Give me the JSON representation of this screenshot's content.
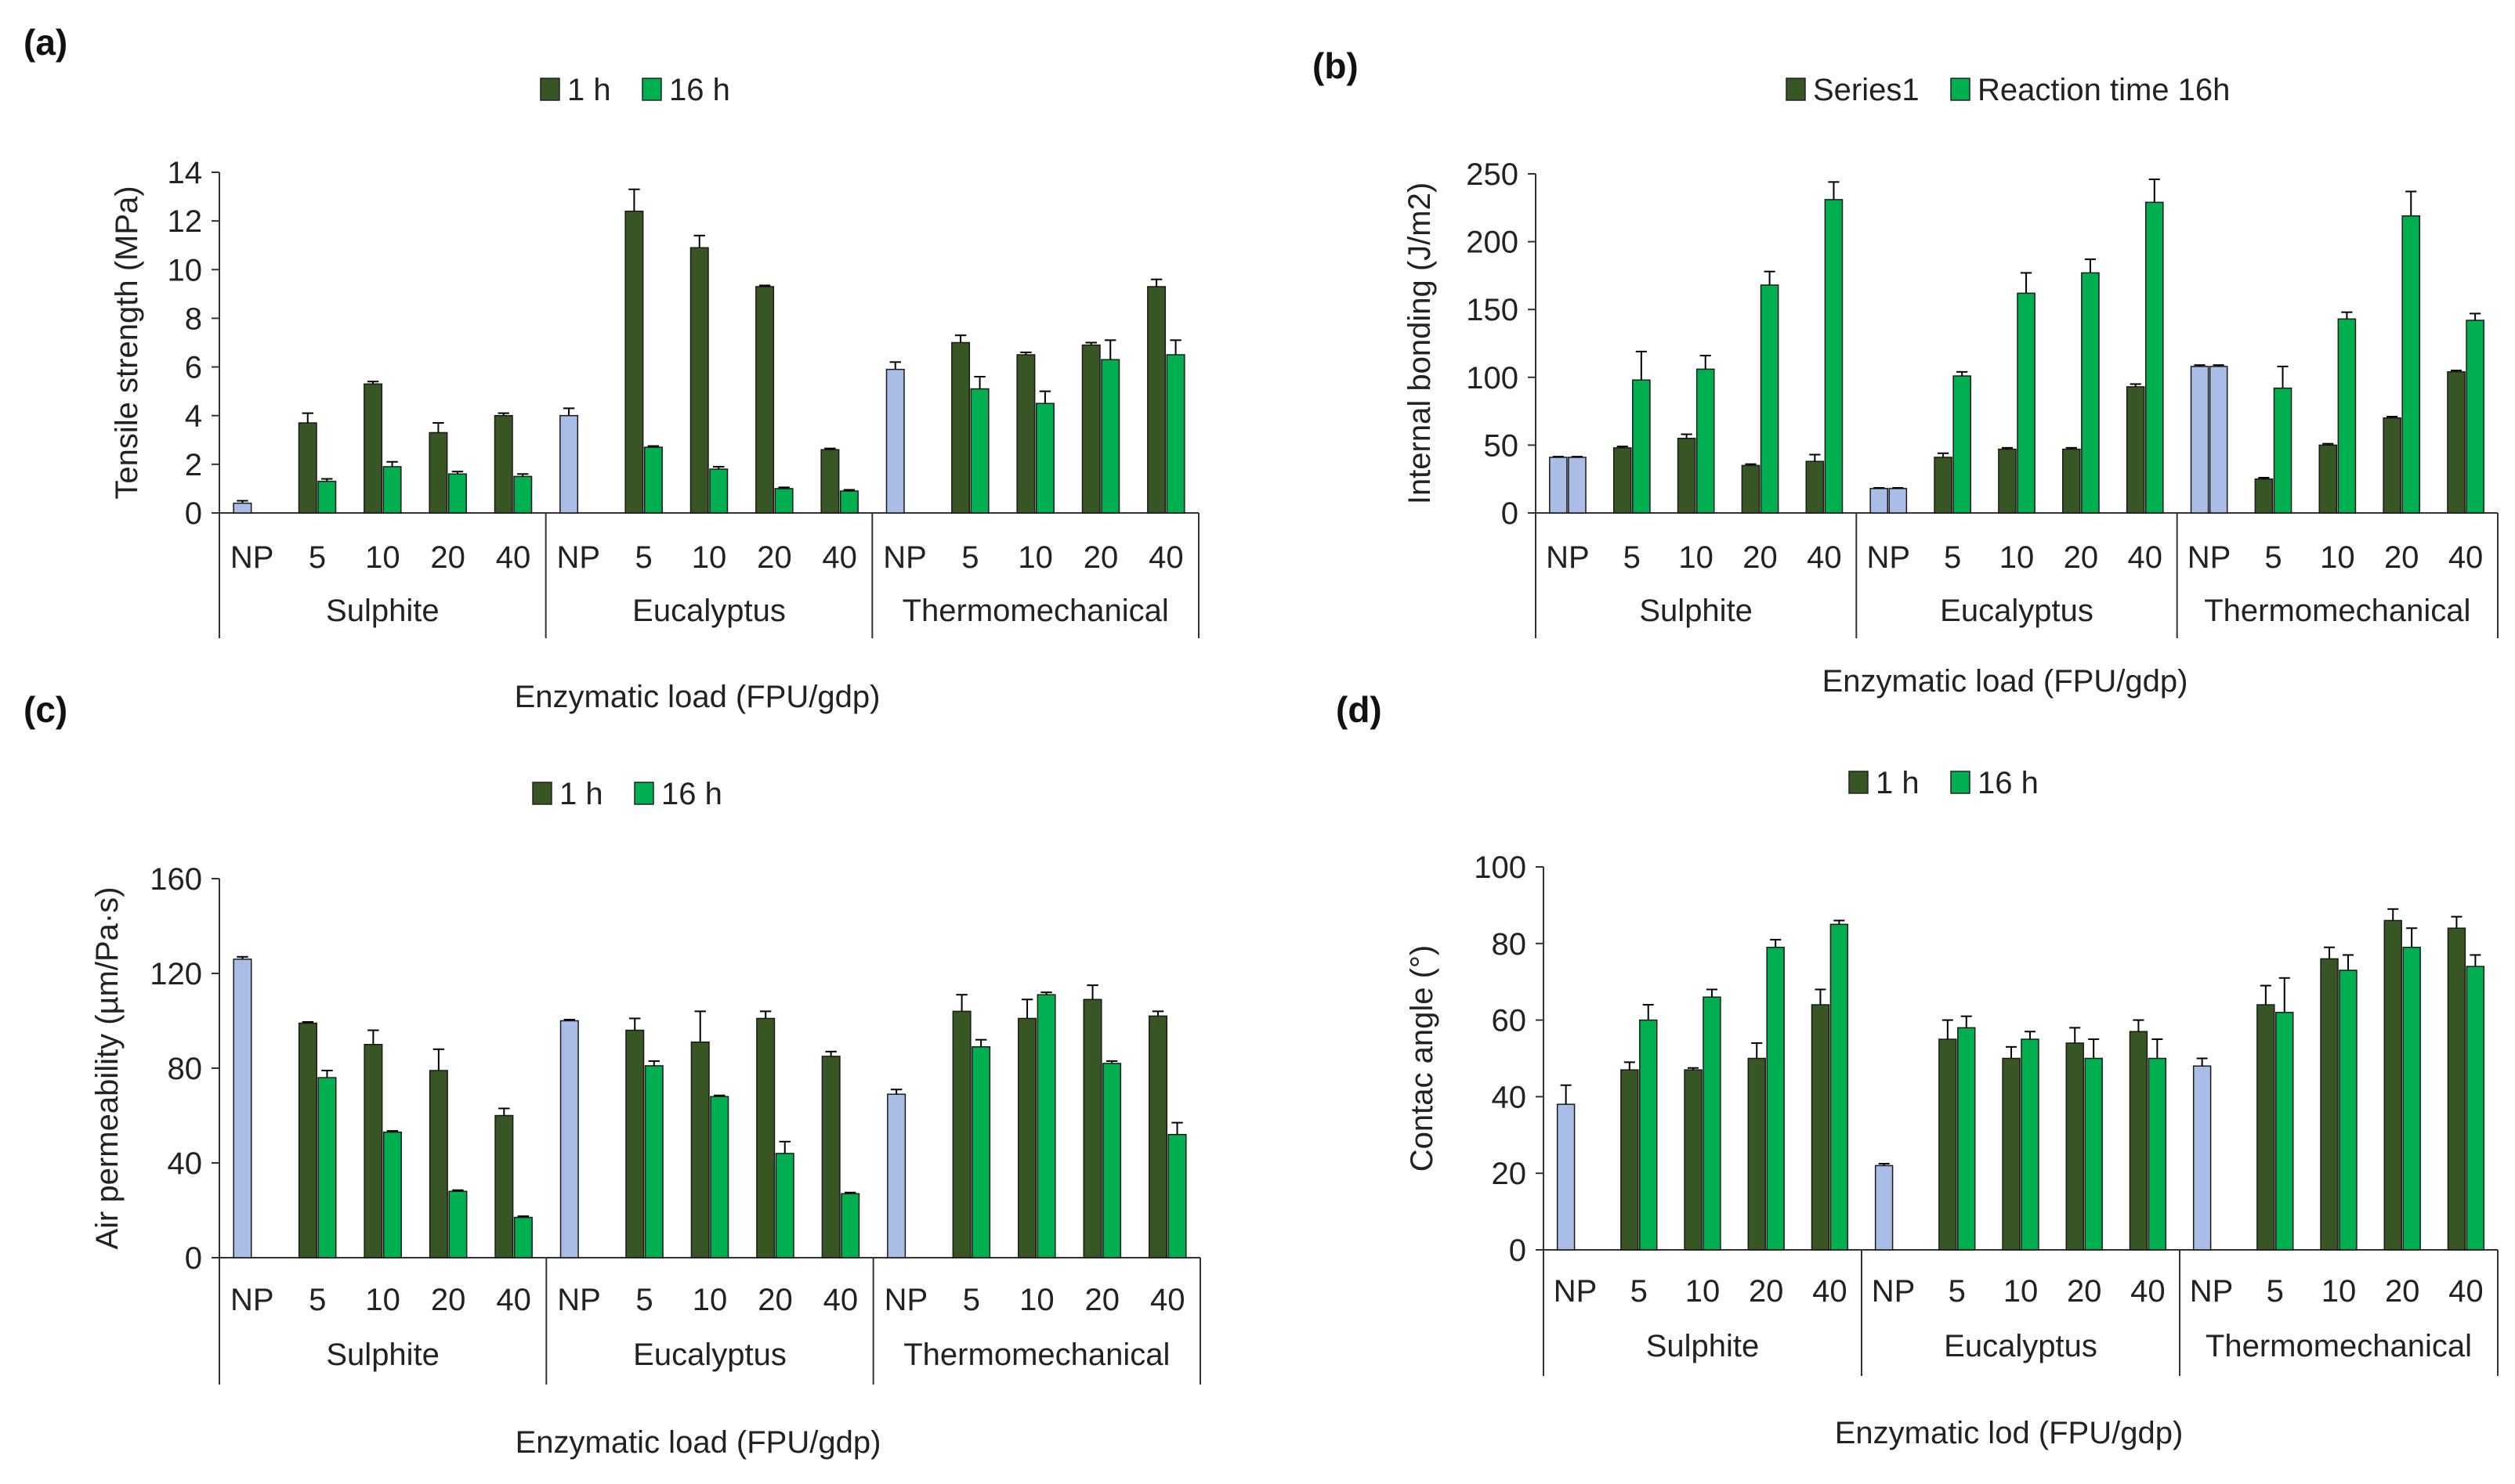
{
  "colors": {
    "series_1h": "#375623",
    "series_16h": "#00b050",
    "np": "#a9bde6",
    "axis": "#333333"
  },
  "chart_data": [
    {
      "panel": "(a)",
      "type": "bar",
      "legend": [
        "1 h",
        "16 h"
      ],
      "ylabel": "Tensile strength (MPa)",
      "xlabel": "Enzymatic load (FPU/gdp)",
      "ylim": [
        0,
        14
      ],
      "yticks": [
        0,
        2,
        4,
        6,
        8,
        10,
        12,
        14
      ],
      "groups": [
        {
          "name": "Sulphite",
          "np": {
            "value": 0.4,
            "err": 0.1
          },
          "loads": [
            "5",
            "10",
            "20",
            "40"
          ],
          "h1": [
            3.7,
            5.3,
            3.3,
            4.0
          ],
          "h1_err": [
            0.4,
            0.1,
            0.4,
            0.1
          ],
          "h16": [
            1.3,
            1.9,
            1.6,
            1.5
          ],
          "h16_err": [
            0.1,
            0.2,
            0.1,
            0.1
          ]
        },
        {
          "name": "Eucalyptus",
          "np": {
            "value": 4.0,
            "err": 0.3
          },
          "loads": [
            "5",
            "10",
            "20",
            "40"
          ],
          "h1": [
            12.4,
            10.9,
            9.3,
            2.6
          ],
          "h1_err": [
            0.9,
            0.5,
            0.05,
            0.05
          ],
          "h16": [
            2.7,
            1.8,
            1.0,
            0.9
          ],
          "h16_err": [
            0.05,
            0.1,
            0.05,
            0.05
          ]
        },
        {
          "name": "Thermomechanical",
          "np": {
            "value": 5.9,
            "err": 0.3
          },
          "loads": [
            "5",
            "10",
            "20",
            "40"
          ],
          "h1": [
            7.0,
            6.5,
            6.9,
            9.3
          ],
          "h1_err": [
            0.3,
            0.1,
            0.1,
            0.3
          ],
          "h16": [
            5.1,
            4.5,
            6.3,
            6.5
          ],
          "h16_err": [
            0.5,
            0.5,
            0.8,
            0.6
          ]
        }
      ]
    },
    {
      "panel": "(b)",
      "type": "bar",
      "legend": [
        "Series1",
        "Reaction time 16h"
      ],
      "ylabel": "Internal bonding (J/m2)",
      "xlabel": "Enzymatic load (FPU/gdp)",
      "ylim": [
        0,
        250
      ],
      "yticks": [
        0,
        50,
        100,
        150,
        200,
        250
      ],
      "np_two_bars": true,
      "groups": [
        {
          "name": "Sulphite",
          "np": {
            "value": 41,
            "err": 0.5,
            "value2": 41,
            "err2": 0.5
          },
          "loads": [
            "5",
            "10",
            "20",
            "40"
          ],
          "h1": [
            48,
            55,
            35,
            38
          ],
          "h1_err": [
            1,
            3,
            1,
            5
          ],
          "h16": [
            98,
            106,
            168,
            231
          ],
          "h16_err": [
            21,
            10,
            10,
            13
          ]
        },
        {
          "name": "Eucalyptus",
          "np": {
            "value": 18,
            "err": 0.5,
            "value2": 18,
            "err2": 0.5
          },
          "loads": [
            "5",
            "10",
            "20",
            "40"
          ],
          "h1": [
            41,
            47,
            47,
            93
          ],
          "h1_err": [
            3,
            1,
            1,
            2
          ],
          "h16": [
            101,
            162,
            177,
            229
          ],
          "h16_err": [
            3,
            15,
            10,
            17
          ]
        },
        {
          "name": "Thermomechanical",
          "np": {
            "value": 108,
            "err": 1,
            "value2": 108,
            "err2": 1
          },
          "loads": [
            "5",
            "10",
            "20",
            "40"
          ],
          "h1": [
            25,
            50,
            70,
            104
          ],
          "h1_err": [
            1,
            1,
            1,
            1
          ],
          "h16": [
            92,
            143,
            219,
            142
          ],
          "h16_err": [
            16,
            5,
            18,
            5
          ]
        }
      ]
    },
    {
      "panel": "(c)",
      "type": "bar",
      "legend": [
        "1 h",
        "16 h"
      ],
      "ylabel": "Air permeability (µm/Pa·s)",
      "xlabel": "Enzymatic load (FPU/gdp)",
      "ylim": [
        0,
        160
      ],
      "yticks": [
        0,
        40,
        80,
        120,
        160
      ],
      "groups": [
        {
          "name": "Sulphite",
          "np": {
            "value": 126,
            "err": 1
          },
          "loads": [
            "5",
            "10",
            "20",
            "40"
          ],
          "h1": [
            99,
            90,
            79,
            60
          ],
          "h1_err": [
            0.5,
            6,
            9,
            3
          ],
          "h16": [
            76,
            53,
            28,
            17
          ],
          "h16_err": [
            3,
            0.5,
            0.5,
            0.5
          ]
        },
        {
          "name": "Eucalyptus",
          "np": {
            "value": 100,
            "err": 0.5
          },
          "loads": [
            "5",
            "10",
            "20",
            "40"
          ],
          "h1": [
            96,
            91,
            101,
            85
          ],
          "h1_err": [
            5,
            13,
            3,
            2
          ],
          "h16": [
            81,
            68,
            44,
            27
          ],
          "h16_err": [
            2,
            0.5,
            5,
            0.5
          ]
        },
        {
          "name": "Thermomechanical",
          "np": {
            "value": 69,
            "err": 2
          },
          "loads": [
            "5",
            "10",
            "20",
            "40"
          ],
          "h1": [
            104,
            101,
            109,
            102
          ],
          "h1_err": [
            7,
            8,
            6,
            2
          ],
          "h16": [
            89,
            111,
            82,
            52
          ],
          "h16_err": [
            3,
            1,
            1,
            5
          ]
        }
      ]
    },
    {
      "panel": "(d)",
      "type": "bar",
      "legend": [
        "1 h",
        "16 h"
      ],
      "ylabel": "Contac angle (°)",
      "xlabel": "Enzymatic lod (FPU/gdp)",
      "ylim": [
        0,
        100
      ],
      "yticks": [
        0,
        20,
        40,
        60,
        80,
        100
      ],
      "groups": [
        {
          "name": "Sulphite",
          "np": {
            "value": 38,
            "err": 5
          },
          "loads": [
            "5",
            "10",
            "20",
            "40"
          ],
          "h1": [
            47,
            47,
            50,
            64
          ],
          "h1_err": [
            2,
            0.5,
            4,
            4
          ],
          "h16": [
            60,
            66,
            79,
            85
          ],
          "h16_err": [
            4,
            2,
            2,
            1
          ]
        },
        {
          "name": "Eucalyptus",
          "np": {
            "value": 22,
            "err": 0.5
          },
          "loads": [
            "5",
            "10",
            "20",
            "40"
          ],
          "h1": [
            55,
            50,
            54,
            57
          ],
          "h1_err": [
            5,
            3,
            4,
            3
          ],
          "h16": [
            58,
            55,
            50,
            50
          ],
          "h16_err": [
            3,
            2,
            5,
            5
          ]
        },
        {
          "name": "Thermomechanical",
          "np": {
            "value": 48,
            "err": 2
          },
          "loads": [
            "5",
            "10",
            "20",
            "40"
          ],
          "h1": [
            64,
            76,
            86,
            84
          ],
          "h1_err": [
            5,
            3,
            3,
            3
          ],
          "h16": [
            62,
            73,
            79,
            74
          ],
          "h16_err": [
            9,
            4,
            5,
            3
          ]
        }
      ]
    }
  ]
}
